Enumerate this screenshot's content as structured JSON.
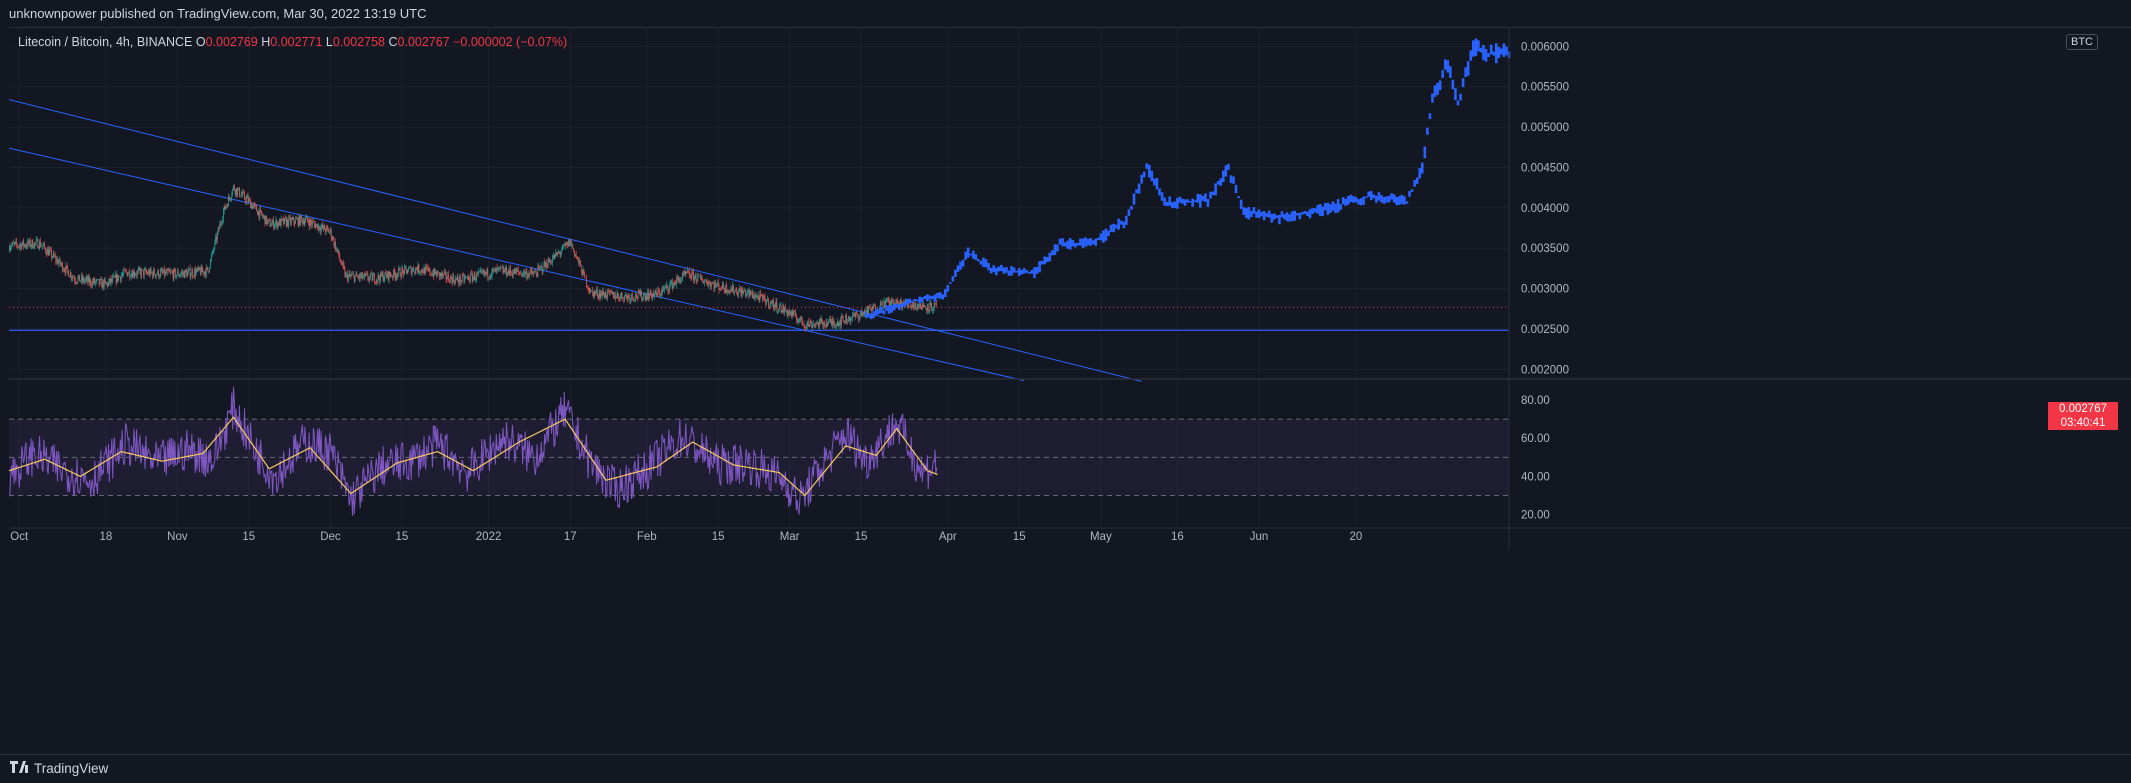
{
  "header": {
    "published_text": "unknownpower published on TradingView.com, Mar 30, 2022 13:19 UTC"
  },
  "legend": {
    "symbol": "Litecoin / Bitcoin, 4h, BINANCE",
    "open_label": "O",
    "open_value": "0.002769",
    "high_label": "H",
    "high_value": "0.002771",
    "low_label": "L",
    "low_value": "0.002758",
    "close_label": "C",
    "close_value": "0.002767",
    "change_value": "−0.000002 (−0.07%)"
  },
  "price_badge": {
    "last_price": "0.002767",
    "countdown": "03:40:41",
    "currency": "BTC"
  },
  "footer": {
    "brand": "TradingView"
  },
  "colors": {
    "background": "#131722",
    "grid": "#1e222d",
    "candle_up": "#26a69a",
    "candle_down": "#ef5350",
    "projection": "#2962ff",
    "trendline": "#2962ff",
    "last_price_line": "#f23645",
    "rsi_line": "#7e57c2",
    "rsi_ma": "#f7c862",
    "rsi_band": "#7e57c2"
  },
  "chart_data": [
    {
      "type": "candlestick",
      "title": "Litecoin / Bitcoin, 4h, BINANCE",
      "y_axis_ticks": [
        "0.006000",
        "0.005500",
        "0.005000",
        "0.004500",
        "0.004000",
        "0.003500",
        "0.003000",
        "0.002500",
        "0.002000"
      ],
      "y_axis_ticks_numeric": [
        0.006,
        0.0055,
        0.005,
        0.0045,
        0.004,
        0.0035,
        0.003,
        0.0025,
        0.002
      ],
      "ylim": [
        0.00188,
        0.00624
      ],
      "x_axis_ticks": [
        "Oct",
        "18",
        "Nov",
        "15",
        "Dec",
        "15",
        "2022",
        "17",
        "Feb",
        "15",
        "Mar",
        "15",
        "Apr",
        "15",
        "May",
        "16",
        "Jun",
        "20"
      ],
      "x_axis_dates": [
        "2021-10-01",
        "2021-10-18",
        "2021-11-01",
        "2021-11-15",
        "2021-12-01",
        "2021-12-15",
        "2022-01-01",
        "2022-01-17",
        "2022-02-01",
        "2022-02-15",
        "2022-03-01",
        "2022-03-15",
        "2022-04-01",
        "2022-04-15",
        "2022-05-01",
        "2022-05-16",
        "2022-06-01",
        "2022-06-20"
      ],
      "xlim": [
        "2021-09-29",
        "2022-07-20"
      ],
      "last_price": 0.002767,
      "price_path": [
        {
          "date": "2021-09-29",
          "price": 0.00353
        },
        {
          "date": "2021-10-05",
          "price": 0.00356
        },
        {
          "date": "2021-10-12",
          "price": 0.00312
        },
        {
          "date": "2021-10-18",
          "price": 0.00305
        },
        {
          "date": "2021-10-22",
          "price": 0.0032
        },
        {
          "date": "2021-11-01",
          "price": 0.00318
        },
        {
          "date": "2021-11-07",
          "price": 0.00322
        },
        {
          "date": "2021-11-10",
          "price": 0.00395
        },
        {
          "date": "2021-11-12",
          "price": 0.00425
        },
        {
          "date": "2021-11-15",
          "price": 0.00408
        },
        {
          "date": "2021-11-19",
          "price": 0.0038
        },
        {
          "date": "2021-11-26",
          "price": 0.00385
        },
        {
          "date": "2021-12-01",
          "price": 0.0037
        },
        {
          "date": "2021-12-04",
          "price": 0.00315
        },
        {
          "date": "2021-12-10",
          "price": 0.00313
        },
        {
          "date": "2021-12-18",
          "price": 0.00325
        },
        {
          "date": "2021-12-26",
          "price": 0.0031
        },
        {
          "date": "2022-01-03",
          "price": 0.00322
        },
        {
          "date": "2022-01-10",
          "price": 0.00318
        },
        {
          "date": "2022-01-15",
          "price": 0.00345
        },
        {
          "date": "2022-01-17",
          "price": 0.00358
        },
        {
          "date": "2022-01-21",
          "price": 0.00295
        },
        {
          "date": "2022-01-28",
          "price": 0.0029
        },
        {
          "date": "2022-02-03",
          "price": 0.00293
        },
        {
          "date": "2022-02-09",
          "price": 0.00318
        },
        {
          "date": "2022-02-15",
          "price": 0.00303
        },
        {
          "date": "2022-02-22",
          "price": 0.00292
        },
        {
          "date": "2022-03-01",
          "price": 0.0027
        },
        {
          "date": "2022-03-04",
          "price": 0.00256
        },
        {
          "date": "2022-03-10",
          "price": 0.00258
        },
        {
          "date": "2022-03-15",
          "price": 0.00268
        },
        {
          "date": "2022-03-20",
          "price": 0.00283
        },
        {
          "date": "2022-03-25",
          "price": 0.0028
        },
        {
          "date": "2022-03-30",
          "price": 0.002767
        }
      ],
      "projection_path": [
        {
          "date": "2022-03-16",
          "price": 0.00265
        },
        {
          "date": "2022-03-25",
          "price": 0.00285
        },
        {
          "date": "2022-03-31",
          "price": 0.0029
        },
        {
          "date": "2022-04-05",
          "price": 0.00345
        },
        {
          "date": "2022-04-10",
          "price": 0.00323
        },
        {
          "date": "2022-04-18",
          "price": 0.0032
        },
        {
          "date": "2022-04-23",
          "price": 0.00355
        },
        {
          "date": "2022-04-30",
          "price": 0.00358
        },
        {
          "date": "2022-05-06",
          "price": 0.00385
        },
        {
          "date": "2022-05-10",
          "price": 0.00452
        },
        {
          "date": "2022-05-14",
          "price": 0.00405
        },
        {
          "date": "2022-05-22",
          "price": 0.0041
        },
        {
          "date": "2022-05-26",
          "price": 0.00448
        },
        {
          "date": "2022-05-29",
          "price": 0.00395
        },
        {
          "date": "2022-06-05",
          "price": 0.00388
        },
        {
          "date": "2022-06-15",
          "price": 0.004
        },
        {
          "date": "2022-06-23",
          "price": 0.00415
        },
        {
          "date": "2022-06-30",
          "price": 0.00408
        },
        {
          "date": "2022-07-03",
          "price": 0.0045
        },
        {
          "date": "2022-07-05",
          "price": 0.00535
        },
        {
          "date": "2022-07-08",
          "price": 0.0058
        },
        {
          "date": "2022-07-10",
          "price": 0.00528
        },
        {
          "date": "2022-07-13",
          "price": 0.00598
        },
        {
          "date": "2022-07-16",
          "price": 0.0059
        },
        {
          "date": "2022-07-20",
          "price": 0.00593
        }
      ],
      "drawings": [
        {
          "kind": "trendline",
          "from": {
            "date": "2021-09-29",
            "price": 0.00534
          },
          "to": {
            "date": "2022-05-09",
            "price": 0.00185
          }
        },
        {
          "kind": "trendline",
          "from": {
            "date": "2021-09-29",
            "price": 0.00474
          },
          "to": {
            "date": "2022-04-16",
            "price": 0.00186
          }
        },
        {
          "kind": "horizontal_line",
          "price": 0.002483
        }
      ],
      "grid": true,
      "legend_position": "top-left"
    },
    {
      "type": "line",
      "title": "",
      "y_axis_ticks": [
        "80.00",
        "60.00",
        "40.00",
        "20.00"
      ],
      "y_axis_ticks_numeric": [
        80,
        60,
        40,
        20
      ],
      "ylim": [
        13,
        91
      ],
      "bands": {
        "upper": 70,
        "middle": 50,
        "lower": 30
      },
      "xlim": [
        "2021-09-29",
        "2022-03-30"
      ],
      "series": [
        {
          "values": [
            {
              "date": "2021-09-29",
              "value": 40
            },
            {
              "date": "2021-10-04",
              "value": 52
            },
            {
              "date": "2021-10-09",
              "value": 44
            },
            {
              "date": "2021-10-15",
              "value": 38
            },
            {
              "date": "2021-10-22",
              "value": 57
            },
            {
              "date": "2021-10-28",
              "value": 47
            },
            {
              "date": "2021-11-03",
              "value": 54
            },
            {
              "date": "2021-11-08",
              "value": 49
            },
            {
              "date": "2021-11-12",
              "value": 76
            },
            {
              "date": "2021-11-16",
              "value": 55
            },
            {
              "date": "2021-11-20",
              "value": 40
            },
            {
              "date": "2021-11-26",
              "value": 58
            },
            {
              "date": "2021-12-01",
              "value": 53
            },
            {
              "date": "2021-12-05",
              "value": 28
            },
            {
              "date": "2021-12-11",
              "value": 45
            },
            {
              "date": "2021-12-17",
              "value": 48
            },
            {
              "date": "2021-12-22",
              "value": 57
            },
            {
              "date": "2021-12-28",
              "value": 42
            },
            {
              "date": "2022-01-04",
              "value": 60
            },
            {
              "date": "2022-01-10",
              "value": 50
            },
            {
              "date": "2022-01-16",
              "value": 74
            },
            {
              "date": "2022-01-21",
              "value": 47
            },
            {
              "date": "2022-01-26",
              "value": 33
            },
            {
              "date": "2022-02-01",
              "value": 44
            },
            {
              "date": "2022-02-08",
              "value": 61
            },
            {
              "date": "2022-02-15",
              "value": 46
            },
            {
              "date": "2022-02-21",
              "value": 47
            },
            {
              "date": "2022-02-28",
              "value": 38
            },
            {
              "date": "2022-03-03",
              "value": 27
            },
            {
              "date": "2022-03-07",
              "value": 44
            },
            {
              "date": "2022-03-12",
              "value": 63
            },
            {
              "date": "2022-03-16",
              "value": 48
            },
            {
              "date": "2022-03-22",
              "value": 68
            },
            {
              "date": "2022-03-27",
              "value": 42
            },
            {
              "date": "2022-03-30",
              "value": 48
            }
          ]
        },
        {
          "values": [
            {
              "date": "2021-09-29",
              "value": 43
            },
            {
              "date": "2021-10-06",
              "value": 49
            },
            {
              "date": "2021-10-13",
              "value": 40
            },
            {
              "date": "2021-10-21",
              "value": 53
            },
            {
              "date": "2021-10-29",
              "value": 48
            },
            {
              "date": "2021-11-06",
              "value": 52
            },
            {
              "date": "2021-11-12",
              "value": 71
            },
            {
              "date": "2021-11-19",
              "value": 44
            },
            {
              "date": "2021-11-27",
              "value": 55
            },
            {
              "date": "2021-12-05",
              "value": 31
            },
            {
              "date": "2021-12-14",
              "value": 47
            },
            {
              "date": "2021-12-22",
              "value": 53
            },
            {
              "date": "2021-12-29",
              "value": 43
            },
            {
              "date": "2022-01-07",
              "value": 58
            },
            {
              "date": "2022-01-16",
              "value": 70
            },
            {
              "date": "2022-01-24",
              "value": 38
            },
            {
              "date": "2022-02-03",
              "value": 45
            },
            {
              "date": "2022-02-10",
              "value": 58
            },
            {
              "date": "2022-02-18",
              "value": 46
            },
            {
              "date": "2022-02-27",
              "value": 42
            },
            {
              "date": "2022-03-04",
              "value": 30
            },
            {
              "date": "2022-03-12",
              "value": 56
            },
            {
              "date": "2022-03-18",
              "value": 51
            },
            {
              "date": "2022-03-22",
              "value": 65
            },
            {
              "date": "2022-03-28",
              "value": 43
            },
            {
              "date": "2022-03-30",
              "value": 41
            }
          ]
        }
      ]
    }
  ]
}
